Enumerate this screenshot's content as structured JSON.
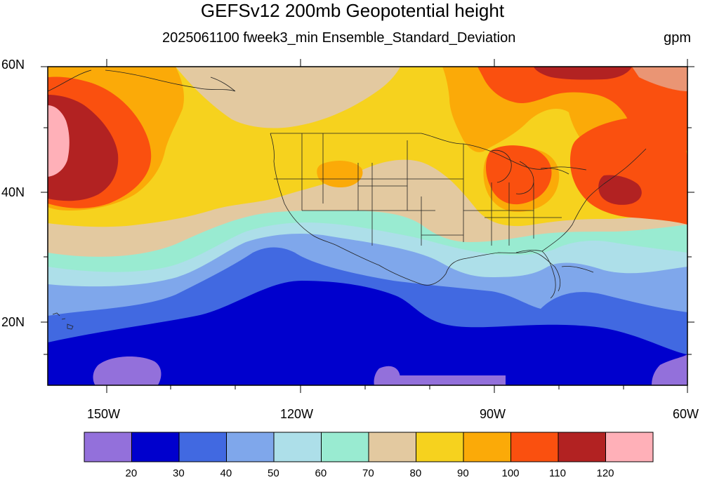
{
  "title": "GEFSv12 200mb Geopotential height",
  "subtitle": "2025061100 fweek3_min Ensemble_Standard_Deviation",
  "units": "gpm",
  "lat_labels": [
    "60N",
    "40N",
    "20N"
  ],
  "lon_labels": [
    "150W",
    "120W",
    "90W",
    "60W"
  ],
  "colorbar": {
    "colors": [
      "#9370DB",
      "#0000CD",
      "#4169E1",
      "#7FA7EB",
      "#ADDFE9",
      "#99EBD1",
      "#E3C9A0",
      "#F6D21E",
      "#FBAA08",
      "#FA500F",
      "#B22222",
      "#FFB0B8"
    ],
    "labels": [
      "20",
      "30",
      "40",
      "50",
      "60",
      "70",
      "80",
      "90",
      "100",
      "110",
      "120"
    ]
  },
  "map": {
    "extent": {
      "lon": [
        -160,
        -60
      ],
      "lat": [
        10,
        60
      ]
    },
    "region": "North Pacific and contiguous United States",
    "field": "200mb geopotential height ensemble standard deviation"
  }
}
